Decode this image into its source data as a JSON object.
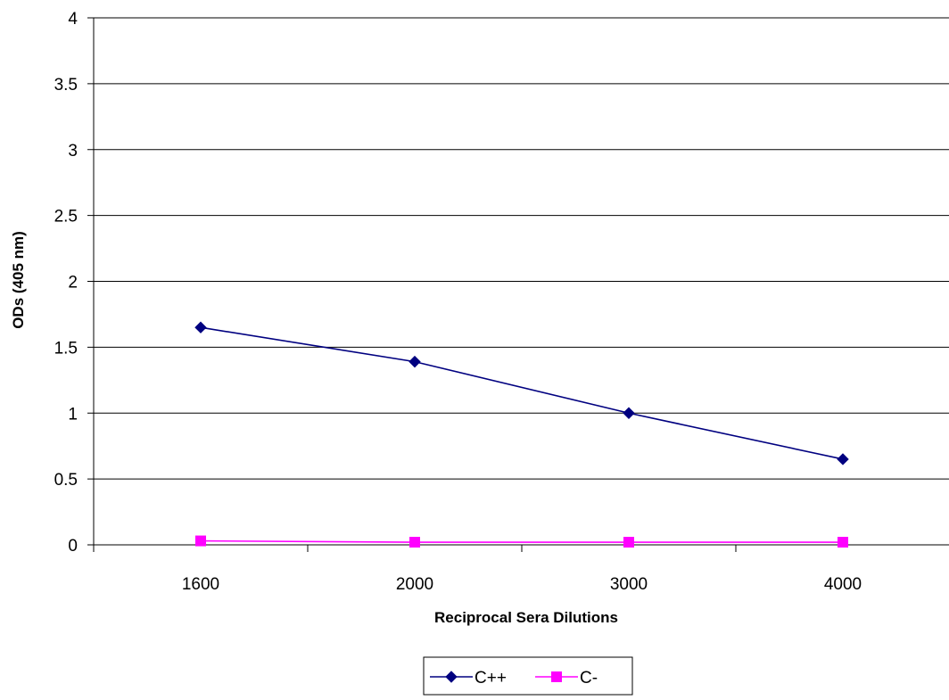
{
  "chart_data": {
    "type": "line",
    "title": "",
    "xlabel": "Reciprocal Sera Dilutions",
    "ylabel": "ODs (405 nm)",
    "categories": [
      "1600",
      "2000",
      "3000",
      "4000"
    ],
    "ylim": [
      0,
      4
    ],
    "yticks": [
      "0",
      "0.5",
      "1",
      "1.5",
      "2",
      "2.5",
      "3",
      "3.5",
      "4"
    ],
    "grid": true,
    "legend_position": "bottom",
    "series": [
      {
        "name": "C++",
        "values": [
          1.65,
          1.39,
          1.0,
          0.65
        ],
        "color": "#000080",
        "marker": "diamond"
      },
      {
        "name": "C-",
        "values": [
          0.03,
          0.02,
          0.02,
          0.02
        ],
        "color": "#FF00FF",
        "marker": "square"
      }
    ]
  }
}
